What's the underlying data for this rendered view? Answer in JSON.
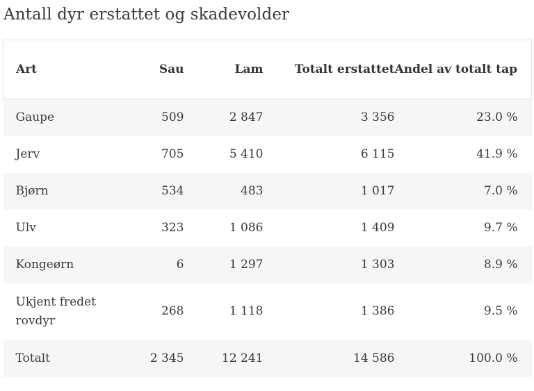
{
  "title": "Antall dyr erstattet og skadevolder",
  "table": {
    "headers": [
      "Art",
      "Sau",
      "Lam",
      "Totalt erstattet",
      "Andel av totalt tap"
    ],
    "rows": [
      [
        "Gaupe",
        "509",
        "2 847",
        "3 356",
        "23.0 %"
      ],
      [
        "Jerv",
        "705",
        "5 410",
        "6 115",
        "41.9 %"
      ],
      [
        "Bjørn",
        "534",
        "483",
        "1 017",
        "7.0 %"
      ],
      [
        "Ulv",
        "323",
        "1 086",
        "1 409",
        "9.7 %"
      ],
      [
        "Kongeørn",
        "6",
        "1 297",
        "1 303",
        "8.9 %"
      ],
      [
        "Ukjent fredet rovdyr",
        "268",
        "1 118",
        "1 386",
        "9.5 %"
      ],
      [
        "Totalt",
        "2 345",
        "12 241",
        "14 586",
        "100.0 %"
      ]
    ]
  },
  "colors": {
    "stripe": "#f6f6f6",
    "header_border": "#e2e2e2",
    "text": "#333333"
  }
}
